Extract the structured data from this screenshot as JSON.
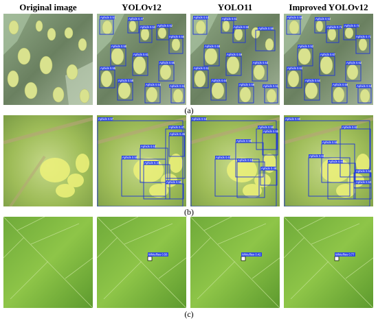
{
  "columns": [
    "Original image",
    "YOLOv12",
    "YOLO11",
    "Improved YOLOv12"
  ],
  "rows": [
    {
      "caption": "(a)",
      "detections": {
        "yolov12": [
          "Aphids 0.51",
          "Aphids 0.47",
          "Aphids 0.53",
          "Aphids 0.52",
          "Aphids 0.55",
          "Aphids 0.58",
          "Aphids 0.61",
          "Aphids 0.55",
          "Aphids 0.55",
          "Aphids 0.58",
          "Aphids 0.54",
          "Aphids 0.51"
        ],
        "yolo11": [
          "Aphids 0.53",
          "Aphids 0.51",
          "Aphids 0.58",
          "Aphids 0.56",
          "Aphids 0.59",
          "Aphids 0.59",
          "Aphids 0.53",
          "Aphids 0.51",
          "Aphids 0.64",
          "Aphids 0.59",
          "Aphids 0.51"
        ],
        "improved": [
          "Aphids 0.58",
          "Aphids 0.53",
          "Aphids 0.74",
          "Aphids 0.74",
          "Aphids 0.71",
          "Aphids 0.52",
          "Aphids 0.67",
          "Aphids 0.62",
          "Aphids 0.64",
          "Aphids 0.54",
          "Aphids 0.59",
          "Aphids 0.52"
        ]
      }
    },
    {
      "caption": "(b)",
      "detections": {
        "yolov12": [
          "Aphids 0.57",
          "Aphids 0.47",
          "Aphids 0.53",
          "Aphids 0.45",
          "Aphids 0.55",
          "Aphids 0.47",
          "Aphids 0.58"
        ],
        "yolo11": [
          "Aphids 0.54",
          "Aphids 0.58",
          "Aphids 0.56",
          "Aphids 0.55",
          "Aphids 0.61",
          "Aphids 0.53",
          "Aphids 0.46"
        ],
        "improved": [
          "Aphids 0.60",
          "Aphids 0.62",
          "Aphids 0.55",
          "Aphids 0.62",
          "Aphids 0.60",
          "Aphids 0.54",
          "Aphids 0.53"
        ]
      }
    },
    {
      "caption": "(c)",
      "detections": {
        "yolov12": [
          "Whiteflies 0.56"
        ],
        "yolo11": [
          "Whiteflies 0.42"
        ],
        "improved": [
          "Whiteflies 0.77"
        ]
      }
    }
  ]
}
